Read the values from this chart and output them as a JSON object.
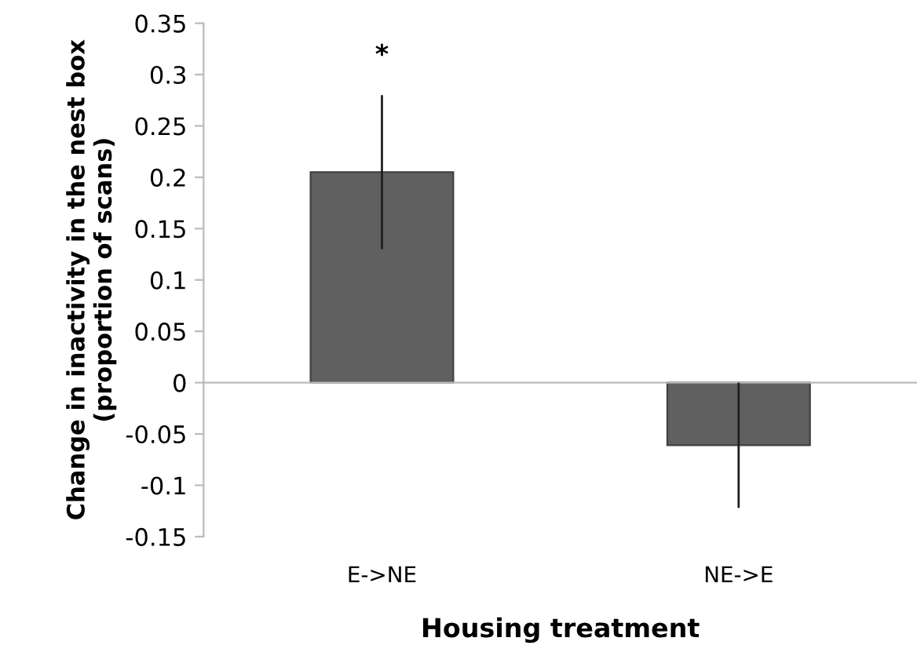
{
  "chart_data": {
    "type": "bar",
    "xlabel": "Housing treatment",
    "ylabel": "Change in inactivity in the nest box\n(proportion of scans)",
    "categories": [
      "E->NE",
      "NE->E"
    ],
    "series": [
      {
        "color": "#606060",
        "values": [
          0.205,
          -0.061
        ],
        "errors": [
          0.075,
          0.061
        ]
      }
    ],
    "annotations": [
      "*"
    ],
    "ylim": [
      -0.15,
      0.35
    ],
    "yticks": [
      -0.15,
      -0.1,
      -0.05,
      0,
      0.05,
      0.1,
      0.15,
      0.2,
      0.25,
      0.3,
      0.35
    ]
  }
}
